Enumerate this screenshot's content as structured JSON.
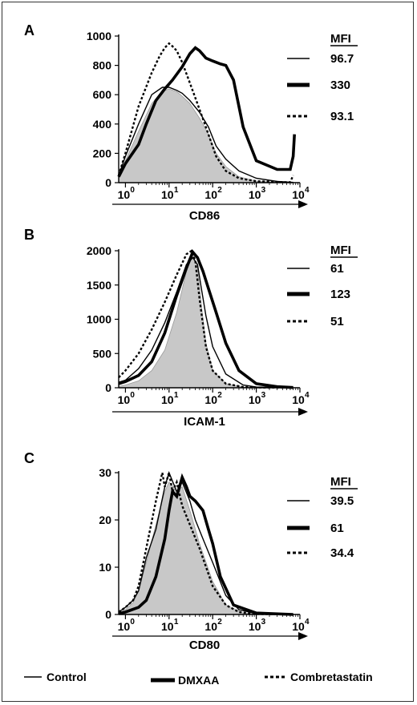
{
  "chart_data": [
    {
      "type": "line",
      "panel": "A",
      "xlabel": "CD86",
      "xscale": "log",
      "xlim": [
        0.7,
        10000
      ],
      "xticks": [
        "10^0",
        "10^1",
        "10^2",
        "10^3",
        "10^4"
      ],
      "ylim": [
        0,
        1000
      ],
      "yticks": [
        0,
        200,
        400,
        600,
        800,
        1000
      ],
      "mfi_header": "MFI",
      "series": [
        {
          "mfi": "96.7",
          "style": "thin",
          "x": [
            0.7,
            1,
            2,
            4,
            7,
            10,
            15,
            20,
            30,
            50,
            80,
            120,
            200,
            400,
            1000,
            3000,
            6000,
            7000
          ],
          "y": [
            50,
            180,
            400,
            600,
            650,
            650,
            630,
            610,
            560,
            480,
            380,
            250,
            160,
            80,
            30,
            8,
            3,
            2
          ]
        },
        {
          "mfi": "330",
          "style": "thick",
          "x": [
            0.7,
            1,
            2,
            3,
            5,
            8,
            12,
            20,
            30,
            40,
            50,
            70,
            100,
            150,
            200,
            300,
            500,
            1000,
            3000,
            6000,
            7000,
            7500
          ],
          "y": [
            40,
            130,
            260,
            400,
            560,
            640,
            700,
            790,
            880,
            920,
            900,
            850,
            830,
            810,
            800,
            700,
            380,
            150,
            90,
            90,
            180,
            330
          ]
        },
        {
          "mfi": "93.1",
          "style": "dashed",
          "x": [
            0.7,
            1,
            2,
            4,
            6,
            8,
            10,
            12,
            15,
            20,
            30,
            50,
            80,
            120,
            200,
            400,
            1000,
            3000,
            6000,
            7000
          ],
          "y": [
            50,
            200,
            520,
            750,
            860,
            920,
            950,
            930,
            900,
            820,
            680,
            500,
            330,
            180,
            80,
            30,
            10,
            5,
            3,
            50
          ]
        },
        {
          "name": "filled",
          "style": "filled",
          "x": [
            0.7,
            1,
            2,
            4,
            7,
            10,
            15,
            20,
            30,
            50,
            80,
            120,
            200,
            400,
            1000,
            3000,
            7000
          ],
          "y": [
            40,
            150,
            350,
            540,
            620,
            640,
            620,
            590,
            540,
            440,
            330,
            200,
            110,
            40,
            10,
            3,
            2
          ]
        }
      ]
    },
    {
      "type": "line",
      "panel": "B",
      "xlabel": "ICAM-1",
      "xscale": "log",
      "xlim": [
        0.7,
        10000
      ],
      "xticks": [
        "10^0",
        "10^1",
        "10^2",
        "10^3",
        "10^4"
      ],
      "ylim": [
        0,
        2000
      ],
      "yticks": [
        0,
        500,
        1000,
        1500,
        2000
      ],
      "mfi_header": "MFI",
      "series": [
        {
          "mfi": "61",
          "style": "thin",
          "x": [
            0.7,
            1,
            2,
            4,
            8,
            15,
            25,
            35,
            45,
            55,
            70,
            100,
            200,
            500,
            1000,
            7000
          ],
          "y": [
            80,
            110,
            280,
            550,
            950,
            1400,
            1800,
            1900,
            1800,
            1450,
            1050,
            600,
            200,
            40,
            10,
            2
          ]
        },
        {
          "mfi": "123",
          "style": "thick",
          "x": [
            0.7,
            1,
            2,
            4,
            8,
            15,
            25,
            35,
            45,
            60,
            80,
            120,
            200,
            400,
            1000,
            3000,
            7000
          ],
          "y": [
            60,
            90,
            180,
            380,
            800,
            1350,
            1750,
            1980,
            1900,
            1700,
            1450,
            1100,
            650,
            250,
            60,
            15,
            3
          ]
        },
        {
          "mfi": "51",
          "style": "dashed",
          "x": [
            0.7,
            1,
            2,
            4,
            8,
            15,
            25,
            33,
            40,
            50,
            70,
            100,
            200,
            500,
            1000,
            7000
          ],
          "y": [
            150,
            250,
            500,
            850,
            1250,
            1650,
            1950,
            2000,
            1850,
            1300,
            600,
            250,
            60,
            10,
            3,
            1
          ]
        },
        {
          "name": "filled",
          "style": "filled",
          "x": [
            0.7,
            1,
            2,
            4,
            8,
            15,
            25,
            35,
            45,
            55,
            70,
            100,
            200,
            500,
            7000
          ],
          "y": [
            20,
            40,
            100,
            250,
            550,
            1100,
            1700,
            1950,
            1750,
            1200,
            650,
            250,
            60,
            10,
            2
          ]
        }
      ]
    },
    {
      "type": "line",
      "panel": "C",
      "xlabel": "CD80",
      "xscale": "log",
      "xlim": [
        0.7,
        10000
      ],
      "xticks": [
        "10^0",
        "10^1",
        "10^2",
        "10^3",
        "10^4"
      ],
      "ylim": [
        0,
        30
      ],
      "yticks": [
        0,
        10,
        20,
        30
      ],
      "mfi_header": "MFI",
      "series": [
        {
          "mfi": "39.5",
          "style": "thin",
          "x": [
            0.7,
            1,
            1.5,
            2,
            3,
            5,
            8,
            10,
            15,
            20,
            30,
            40,
            60,
            100,
            200,
            400,
            1000,
            7000
          ],
          "y": [
            0.5,
            1.5,
            3,
            5,
            12,
            18,
            27,
            30,
            26,
            28,
            24,
            20,
            16,
            11,
            4,
            1,
            0.2,
            0
          ]
        },
        {
          "mfi": "61",
          "style": "thick",
          "x": [
            0.7,
            1,
            2,
            3,
            5,
            8,
            10,
            12,
            15,
            20,
            25,
            30,
            40,
            60,
            80,
            100,
            150,
            300,
            1000,
            7000
          ],
          "y": [
            0.2,
            0.5,
            1.5,
            3,
            8,
            16,
            22,
            26,
            25,
            29,
            27,
            25,
            24,
            22,
            18,
            15,
            8,
            2,
            0.3,
            0
          ]
        },
        {
          "mfi": "34.4",
          "style": "dashed",
          "x": [
            0.7,
            1,
            1.5,
            2,
            3,
            5,
            7,
            8,
            10,
            12,
            15,
            20,
            30,
            50,
            100,
            200,
            400,
            1000,
            7000
          ],
          "y": [
            0.5,
            1.5,
            3,
            6,
            14,
            24,
            30,
            27,
            30,
            26,
            28,
            23,
            19,
            14,
            6,
            2,
            0.5,
            0.1,
            0
          ]
        },
        {
          "name": "filled",
          "style": "filled",
          "x": [
            0.7,
            1,
            1.5,
            2,
            3,
            5,
            8,
            10,
            15,
            20,
            30,
            50,
            100,
            200,
            500,
            7000
          ],
          "y": [
            0.3,
            1,
            2.5,
            5,
            11,
            19,
            26,
            28,
            26,
            27,
            22,
            15,
            7,
            2,
            0.3,
            0
          ]
        }
      ]
    }
  ],
  "legend": {
    "control": "Control",
    "dmxaa": "DMXAA",
    "combretastatin": "Combretastatin"
  }
}
